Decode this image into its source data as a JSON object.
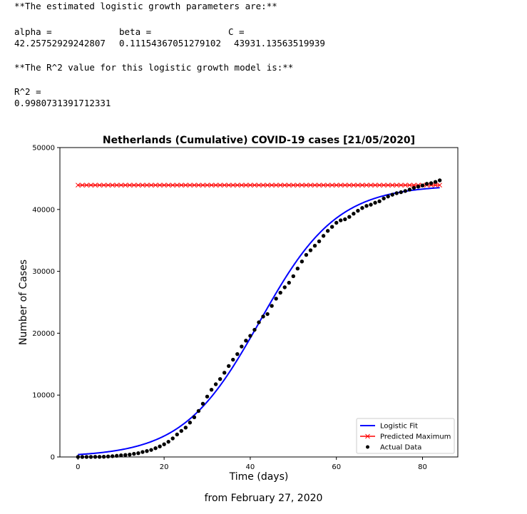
{
  "output": {
    "header1": "**The estimated logistic growth parameters are:**",
    "alpha_label": "alpha =",
    "beta_label": "beta =",
    "c_label": "C =",
    "alpha_value": "42.25752929242807",
    "beta_value": "0.11154367051279102",
    "c_value": "43931.13563519939",
    "header2": "**The R^2 value for this logistic growth model is:**",
    "r2_label": "R^2 =",
    "r2_value": "0.9980731391712331"
  },
  "caption": "from February 27, 2020",
  "colors": {
    "fit": "#0000ff",
    "max": "#ff0000",
    "actual": "#000000"
  },
  "chart_data": {
    "type": "line",
    "title": "Netherlands (Cumulative) COVID-19 cases [21/05/2020]",
    "xlabel": "Time (days)",
    "ylabel": "Number of Cases",
    "xlim": [
      -4.2,
      88.2
    ],
    "ylim": [
      0,
      50000
    ],
    "xticks": [
      0,
      20,
      40,
      60,
      80
    ],
    "yticks": [
      0,
      10000,
      20000,
      30000,
      40000,
      50000
    ],
    "legend_position": "lower-right",
    "grid": false,
    "logistic_params": {
      "alpha": 42.25752929242807,
      "beta": 0.11154367051279102,
      "C": 43931.13563519939
    },
    "x_range": [
      0,
      84
    ],
    "series": [
      {
        "name": "Logistic Fit",
        "kind": "line",
        "color": "#0000ff"
      },
      {
        "name": "Predicted Maximum",
        "kind": "line-x-markers",
        "color": "#ff0000",
        "value": 43931.13563519939
      },
      {
        "name": "Actual Data",
        "kind": "scatter",
        "color": "#000000",
        "x": [
          0,
          1,
          2,
          3,
          4,
          5,
          6,
          7,
          8,
          9,
          10,
          11,
          12,
          13,
          14,
          15,
          16,
          17,
          18,
          19,
          20,
          21,
          22,
          23,
          24,
          25,
          26,
          27,
          28,
          29,
          30,
          31,
          32,
          33,
          34,
          35,
          36,
          37,
          38,
          39,
          40,
          41,
          42,
          43,
          44,
          45,
          46,
          47,
          48,
          49,
          50,
          51,
          52,
          53,
          54,
          55,
          56,
          57,
          58,
          59,
          60,
          61,
          62,
          63,
          64,
          65,
          66,
          67,
          68,
          69,
          70,
          71,
          72,
          73,
          74,
          75,
          76,
          77,
          78,
          79,
          80,
          81,
          82,
          83,
          84
        ],
        "y": [
          1,
          2,
          7,
          10,
          18,
          24,
          38,
          82,
          128,
          188,
          265,
          321,
          382,
          503,
          614,
          804,
          959,
          1135,
          1413,
          1705,
          2051,
          2460,
          2994,
          3631,
          4204,
          4749,
          5560,
          6412,
          7431,
          8603,
          9762,
          10866,
          11750,
          12595,
          13614,
          14697,
          15723,
          16627,
          17851,
          18803,
          19580,
          20549,
          21762,
          22696,
          23097,
          24413,
          25587,
          26551,
          27419,
          28153,
          29214,
          30449,
          31589,
          32655,
          33405,
          34134,
          34842,
          35729,
          36535,
          37190,
          37845,
          38245,
          38416,
          38802,
          39316,
          39791,
          40236,
          40571,
          40770,
          41087,
          41319,
          41774,
          42093,
          42382,
          42627,
          42788,
          42984,
          43211,
          43481,
          43681,
          43870,
          44141,
          44249,
          44447,
          44700
        ]
      }
    ]
  }
}
